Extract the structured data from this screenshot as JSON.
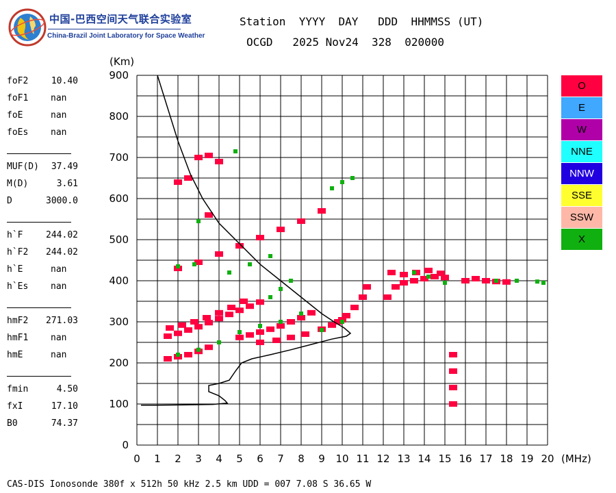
{
  "header": {
    "logo_cn": "中国-巴西空间天气联合实验室",
    "logo_en": "China-Brazil Joint Laboratory for Space Weather",
    "line1": "Station  YYYY  DAY   DDD  HHMMSS (UT)",
    "line2": "OCGD   2025 Nov24  328  020000"
  },
  "params": [
    {
      "label": "foF2",
      "value": "10.40"
    },
    {
      "label": "foF1",
      "value": "nan"
    },
    {
      "label": "foE",
      "value": "nan"
    },
    {
      "label": "foEs",
      "value": "nan"
    },
    {
      "label": "MUF(D)",
      "value": "37.49"
    },
    {
      "label": "M(D)",
      "value": "3.61"
    },
    {
      "label": "D",
      "value": "3000.0"
    },
    {
      "label": "h`F",
      "value": "244.02"
    },
    {
      "label": "h`F2",
      "value": "244.02"
    },
    {
      "label": "h`E",
      "value": "nan"
    },
    {
      "label": "h`Es",
      "value": "nan"
    },
    {
      "label": "hmF2",
      "value": "271.03"
    },
    {
      "label": "hmF1",
      "value": "nan"
    },
    {
      "label": "hmE",
      "value": "nan"
    },
    {
      "label": "fmin",
      "value": "4.50"
    },
    {
      "label": "fxI",
      "value": "17.10"
    },
    {
      "label": "B0",
      "value": "74.37"
    }
  ],
  "legend": [
    {
      "label": "O",
      "color": "#ff0040"
    },
    {
      "label": "E",
      "color": "#40a8ff"
    },
    {
      "label": "W",
      "color": "#b000a8"
    },
    {
      "label": "NNE",
      "color": "#20ffff"
    },
    {
      "label": "NNW",
      "color": "#2000e0"
    },
    {
      "label": "SSE",
      "color": "#ffff30"
    },
    {
      "label": "SSW",
      "color": "#ffb8a8"
    },
    {
      "label": "X",
      "color": "#10b010"
    }
  ],
  "footer": "CAS-DIS Ionosonde 380f x 512h 50 kHz 2.5 km UDD = 007 7.08 S 36.65 W",
  "chart_data": {
    "type": "scatter",
    "xunit": "(MHz)",
    "yunit": "(Km)",
    "xlim": [
      0,
      20
    ],
    "ylim": [
      0,
      900
    ],
    "x_ticks": [
      0,
      1,
      2,
      3,
      4,
      5,
      6,
      7,
      8,
      9,
      10,
      11,
      12,
      13,
      14,
      15,
      16,
      17,
      18,
      19,
      20
    ],
    "y_ticks": [
      0,
      100,
      200,
      300,
      400,
      500,
      600,
      700,
      800,
      900
    ],
    "grid": true,
    "profile_curve": [
      [
        0.2,
        97
      ],
      [
        1.0,
        97
      ],
      [
        2.5,
        98
      ],
      [
        3.7,
        99
      ],
      [
        4.4,
        102
      ],
      [
        4.3,
        108
      ],
      [
        4.0,
        120
      ],
      [
        3.5,
        130
      ],
      [
        3.5,
        145
      ],
      [
        4.0,
        150
      ],
      [
        4.5,
        158
      ],
      [
        4.8,
        180
      ],
      [
        5.1,
        200
      ],
      [
        5.6,
        210
      ],
      [
        6.5,
        220
      ],
      [
        7.5,
        232
      ],
      [
        8.5,
        245
      ],
      [
        9.5,
        258
      ],
      [
        10.2,
        265
      ],
      [
        10.4,
        272
      ],
      [
        10.1,
        285
      ],
      [
        9.6,
        300
      ],
      [
        9.0,
        320
      ],
      [
        8.0,
        360
      ],
      [
        7.0,
        400
      ],
      [
        6.0,
        440
      ],
      [
        5.0,
        490
      ],
      [
        4.0,
        540
      ],
      [
        3.2,
        600
      ],
      [
        2.6,
        660
      ],
      [
        2.0,
        740
      ],
      [
        1.5,
        820
      ],
      [
        1.0,
        900
      ]
    ],
    "traces": [
      {
        "mode": "O",
        "color": "#ff0040",
        "points": [
          [
            1.5,
            210
          ],
          [
            2.0,
            215
          ],
          [
            2.5,
            220
          ],
          [
            3.0,
            228
          ],
          [
            3.5,
            238
          ],
          [
            1.5,
            265
          ],
          [
            2.0,
            272
          ],
          [
            2.5,
            280
          ],
          [
            3.0,
            288
          ],
          [
            3.5,
            298
          ],
          [
            4.0,
            308
          ],
          [
            4.5,
            318
          ],
          [
            5.0,
            328
          ],
          [
            5.5,
            338
          ],
          [
            6.0,
            348
          ],
          [
            1.6,
            285
          ],
          [
            2.2,
            292
          ],
          [
            2.8,
            300
          ],
          [
            3.4,
            310
          ],
          [
            4.0,
            322
          ],
          [
            4.6,
            335
          ],
          [
            5.2,
            350
          ],
          [
            5.0,
            262
          ],
          [
            5.5,
            268
          ],
          [
            6.0,
            275
          ],
          [
            6.5,
            282
          ],
          [
            7.0,
            290
          ],
          [
            7.5,
            300
          ],
          [
            8.0,
            310
          ],
          [
            8.5,
            322
          ],
          [
            6.0,
            250
          ],
          [
            6.8,
            255
          ],
          [
            7.5,
            262
          ],
          [
            8.2,
            270
          ],
          [
            9.0,
            282
          ],
          [
            9.5,
            292
          ],
          [
            10.0,
            305
          ],
          [
            9.8,
            300
          ],
          [
            10.2,
            315
          ],
          [
            10.6,
            335
          ],
          [
            11.0,
            360
          ],
          [
            11.2,
            385
          ],
          [
            12.2,
            360
          ],
          [
            12.6,
            385
          ],
          [
            13.0,
            395
          ],
          [
            13.5,
            400
          ],
          [
            14.0,
            405
          ],
          [
            14.5,
            410
          ],
          [
            15.0,
            408
          ],
          [
            12.4,
            420
          ],
          [
            13.0,
            415
          ],
          [
            13.6,
            420
          ],
          [
            14.2,
            425
          ],
          [
            14.8,
            418
          ],
          [
            16.0,
            400
          ],
          [
            16.5,
            405
          ],
          [
            17.0,
            400
          ],
          [
            17.5,
            398
          ],
          [
            18.0,
            397
          ],
          [
            2.0,
            430
          ],
          [
            3.0,
            445
          ],
          [
            4.0,
            465
          ],
          [
            5.0,
            485
          ],
          [
            6.0,
            505
          ],
          [
            7.0,
            525
          ],
          [
            8.0,
            545
          ],
          [
            9.0,
            570
          ],
          [
            2.0,
            640
          ],
          [
            2.5,
            650
          ],
          [
            3.0,
            700
          ],
          [
            3.5,
            705
          ],
          [
            4.0,
            690
          ],
          [
            3.5,
            560
          ],
          [
            15.4,
            100
          ],
          [
            15.4,
            140
          ],
          [
            15.4,
            180
          ],
          [
            15.4,
            220
          ]
        ]
      },
      {
        "mode": "X",
        "color": "#10b010",
        "points": [
          [
            2.0,
            220
          ],
          [
            3.0,
            232
          ],
          [
            4.0,
            250
          ],
          [
            5.0,
            275
          ],
          [
            6.0,
            290
          ],
          [
            7.0,
            300
          ],
          [
            8.0,
            320
          ],
          [
            9.0,
            280
          ],
          [
            10.0,
            300
          ],
          [
            6.5,
            360
          ],
          [
            7.0,
            380
          ],
          [
            7.5,
            400
          ],
          [
            4.5,
            420
          ],
          [
            5.5,
            440
          ],
          [
            6.5,
            460
          ],
          [
            9.5,
            625
          ],
          [
            10.0,
            640
          ],
          [
            10.5,
            650
          ],
          [
            2.0,
            435
          ],
          [
            2.8,
            440
          ],
          [
            4.8,
            715
          ],
          [
            3.0,
            545
          ],
          [
            13.5,
            420
          ],
          [
            14.2,
            410
          ],
          [
            15.0,
            395
          ],
          [
            17.5,
            400
          ],
          [
            18.5,
            400
          ],
          [
            19.5,
            398
          ],
          [
            19.8,
            395
          ]
        ]
      }
    ]
  }
}
